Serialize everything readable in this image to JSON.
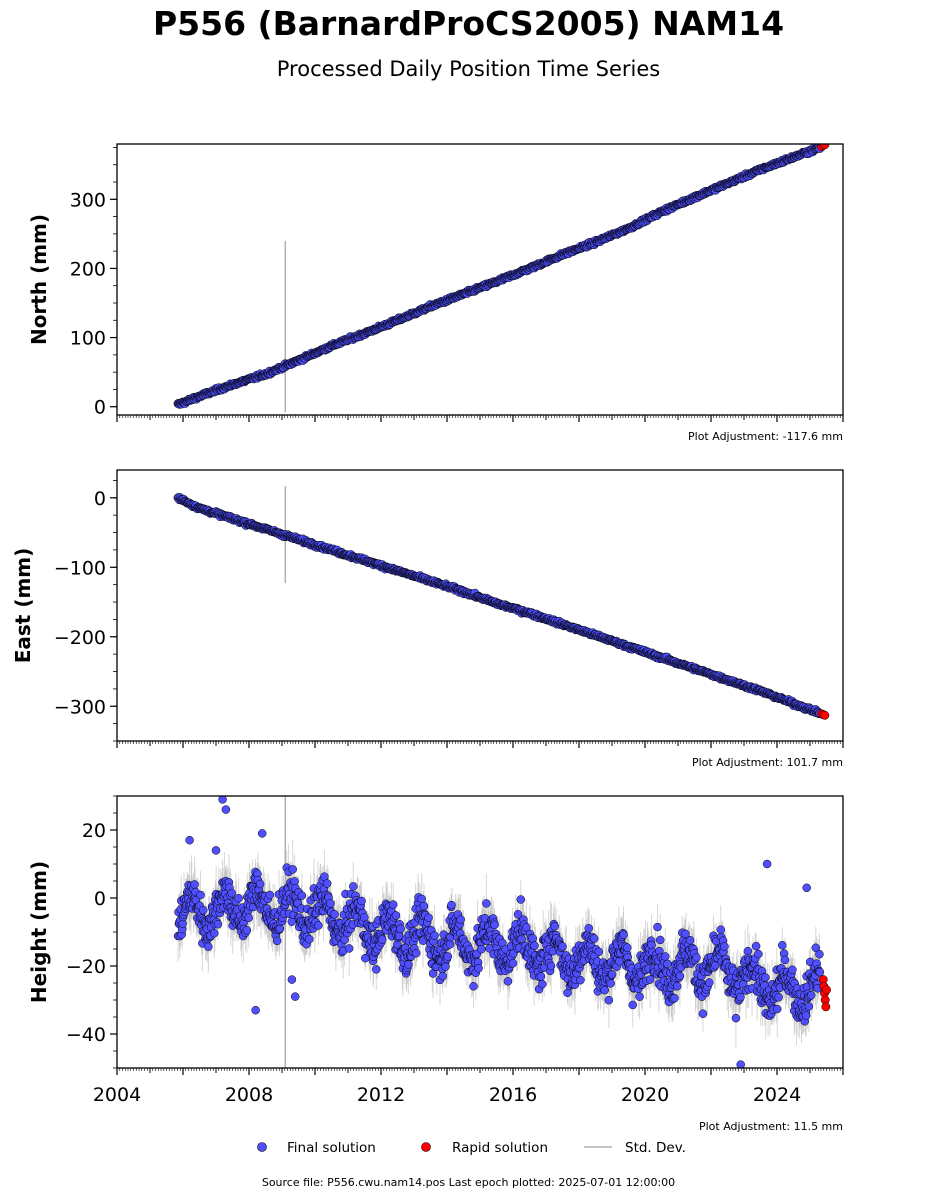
{
  "title": "P556 (BarnardProCS2005) NAM14",
  "subtitle": "Processed Daily Position Time Series",
  "legend": {
    "final_label": "Final solution",
    "rapid_label": "Rapid solution",
    "stddev_label": "Std. Dev."
  },
  "colors": {
    "final": "#4f4fff",
    "rapid": "#ff0000",
    "stddev": "#b0b0b0",
    "marker_edge": "#000000"
  },
  "source": "Source file: P556.cwu.nam14.pos  Last epoch plotted: 2025-07-01 12:00:00",
  "chart_data": [
    {
      "type": "scatter",
      "ylabel": "North (mm)",
      "adjustment": "Plot Adjustment: -117.6 mm",
      "xlim": [
        2004,
        2026
      ],
      "ylim": [
        -12,
        380
      ],
      "yticks": [
        0,
        100,
        200,
        300
      ],
      "ytick_labels": [
        "0",
        "100",
        "200",
        "300"
      ],
      "series": [
        {
          "name": "Final solution",
          "kind": "final",
          "x": [
            2005.85,
            2006.5,
            2007.5,
            2008.5,
            2009.5,
            2010.5,
            2011.5,
            2012.5,
            2013.5,
            2014.5,
            2015.5,
            2016.5,
            2017.5,
            2018.5,
            2019.5,
            2020.5,
            2021.5,
            2022.5,
            2023.5,
            2024.5,
            2025.3
          ],
          "y": [
            3,
            15,
            32,
            47,
            67,
            88,
            106,
            125,
            145,
            163,
            181,
            200,
            220,
            238,
            258,
            282,
            303,
            323,
            343,
            361,
            375
          ]
        },
        {
          "name": "Rapid solution",
          "kind": "rapid",
          "x": [
            2025.35,
            2025.4,
            2025.45
          ],
          "y": [
            376,
            378,
            379
          ]
        }
      ],
      "annotations": [
        {
          "type": "stddev_bar",
          "x": 2009.1,
          "y_low": -8,
          "y_high": 240
        }
      ]
    },
    {
      "type": "scatter",
      "ylabel": "East (mm)",
      "adjustment": "Plot Adjustment: 101.7 mm",
      "xlim": [
        2004,
        2026
      ],
      "ylim": [
        -350,
        40
      ],
      "yticks": [
        0,
        -100,
        -200,
        -300
      ],
      "ytick_labels": [
        "0",
        "−100",
        "−200",
        "−300"
      ],
      "series": [
        {
          "name": "Final solution",
          "kind": "final",
          "x": [
            2005.85,
            2006.5,
            2007.5,
            2008.5,
            2009.5,
            2010.5,
            2011.5,
            2012.5,
            2013.5,
            2014.5,
            2015.5,
            2016.5,
            2017.5,
            2018.5,
            2019.5,
            2020.5,
            2021.5,
            2022.5,
            2023.5,
            2024.5,
            2025.3
          ],
          "y": [
            0,
            -15,
            -30,
            -45,
            -60,
            -75,
            -90,
            -105,
            -120,
            -135,
            -152,
            -166,
            -182,
            -198,
            -214,
            -230,
            -246,
            -262,
            -278,
            -296,
            -310
          ]
        },
        {
          "name": "Rapid solution",
          "kind": "rapid",
          "x": [
            2025.35,
            2025.4,
            2025.45
          ],
          "y": [
            -311,
            -312,
            -313
          ]
        }
      ],
      "annotations": [
        {
          "type": "stddev_bar",
          "x": 2009.1,
          "y_low": -123,
          "y_high": 17
        }
      ]
    },
    {
      "type": "scatter",
      "ylabel": "Height (mm)",
      "adjustment": "Plot Adjustment: 11.5 mm",
      "xlim": [
        2004,
        2026
      ],
      "ylim": [
        -50,
        30
      ],
      "yticks": [
        20,
        0,
        -20,
        -40
      ],
      "ytick_labels": [
        "20",
        "0",
        "−20",
        "−40"
      ],
      "xticks": [
        2004,
        2008,
        2012,
        2016,
        2020,
        2024
      ],
      "xtick_labels": [
        "2004",
        "2008",
        "2012",
        "2016",
        "2020",
        "2024"
      ],
      "trend": {
        "x": [
          2005.85,
          2008,
          2010,
          2012,
          2014,
          2016,
          2018,
          2020,
          2022,
          2024,
          2025.3
        ],
        "y": [
          -5,
          -2,
          -4,
          -10,
          -13,
          -14,
          -18,
          -20,
          -20,
          -27,
          -26
        ]
      },
      "series": [
        {
          "name": "Final solution",
          "kind": "final",
          "scatter_sd": 6
        },
        {
          "name": "Rapid solution",
          "kind": "rapid",
          "x": [
            2025.4,
            2025.42,
            2025.44,
            2025.46,
            2025.48,
            2025.5
          ],
          "y": [
            -24,
            -26,
            -28,
            -30,
            -32,
            -27
          ]
        }
      ],
      "outliers": {
        "x": [
          2007.2,
          2007.3,
          2008.4,
          2006.2,
          2008.2,
          2023.7,
          2024.9,
          2022.9,
          2009.3,
          2009.4,
          2007.0
        ],
        "y": [
          29,
          26,
          19,
          17,
          -33,
          10,
          3,
          -49,
          -24,
          -29,
          14
        ]
      },
      "annotations": [
        {
          "type": "stddev_bar",
          "x": 2009.1,
          "y_low": -50,
          "y_high": 30
        }
      ]
    }
  ]
}
